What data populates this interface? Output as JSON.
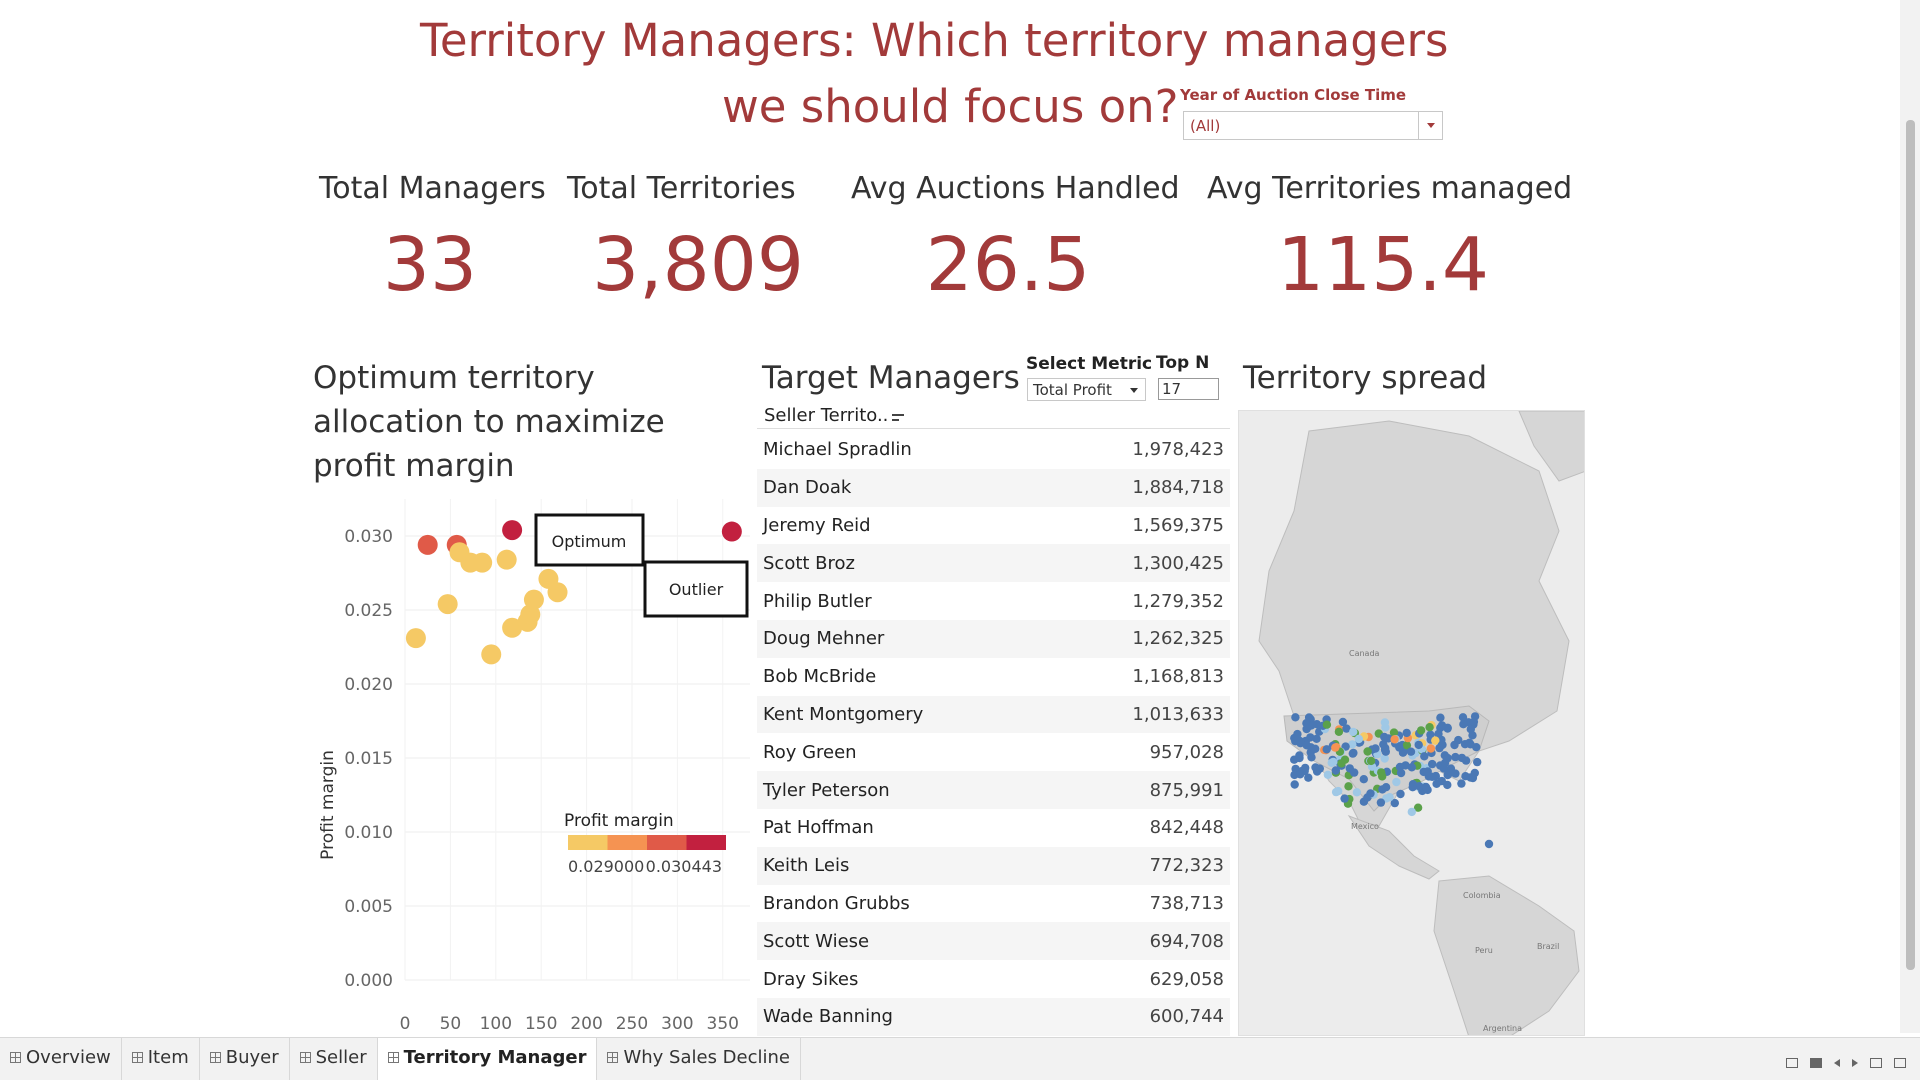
{
  "header": {
    "title_line1": "Territory Managers: Which territory managers",
    "title_line2": "we should focus on?"
  },
  "filter": {
    "label": "Year of Auction Close Time",
    "value": "(All)"
  },
  "kpis": [
    {
      "label": "Total Managers",
      "value": "33"
    },
    {
      "label": "Total Territories",
      "value": "3,809"
    },
    {
      "label": "Avg Auctions Handled",
      "value": "26.5"
    },
    {
      "label": "Avg Territories managed",
      "value": "115.4"
    }
  ],
  "scatter": {
    "title": "Optimum territory allocation to maximize profit margin",
    "annotations": {
      "optimum": "Optimum",
      "outlier": "Outlier"
    },
    "legend_title": "Profit margin",
    "legend_min": "0.029000",
    "legend_max": "0.030443"
  },
  "table": {
    "title": "Target Managers",
    "select_metric_label": "Select Metric",
    "select_metric_value": "Total Profit",
    "topn_label": "Top N",
    "topn_value": "17",
    "column_header": "Seller Territo..",
    "rows": [
      {
        "name": "Michael Spradlin",
        "value": "1,978,423"
      },
      {
        "name": "Dan Doak",
        "value": "1,884,718"
      },
      {
        "name": "Jeremy Reid",
        "value": "1,569,375"
      },
      {
        "name": "Scott Broz",
        "value": "1,300,425"
      },
      {
        "name": "Philip Butler",
        "value": "1,279,352"
      },
      {
        "name": "Doug Mehner",
        "value": "1,262,325"
      },
      {
        "name": "Bob McBride",
        "value": "1,168,813"
      },
      {
        "name": "Kent Montgomery",
        "value": "1,013,633"
      },
      {
        "name": "Roy Green",
        "value": "957,028"
      },
      {
        "name": "Tyler Peterson",
        "value": "875,991"
      },
      {
        "name": "Pat Hoffman",
        "value": "842,448"
      },
      {
        "name": "Keith Leis",
        "value": "772,323"
      },
      {
        "name": "Brandon Grubbs",
        "value": "738,713"
      },
      {
        "name": "Scott Wiese",
        "value": "694,708"
      },
      {
        "name": "Dray Sikes",
        "value": "629,058"
      },
      {
        "name": "Wade Banning",
        "value": "600,744"
      }
    ]
  },
  "map": {
    "title": "Territory spread",
    "labels": {
      "canada": "Canada",
      "mexico": "Mexico",
      "colombia": "Colombia",
      "peru": "Peru",
      "brazil": "Brazil",
      "argentina": "Argentina"
    }
  },
  "tabs": [
    {
      "label": "Overview",
      "active": false
    },
    {
      "label": "Item",
      "active": false
    },
    {
      "label": "Buyer",
      "active": false
    },
    {
      "label": "Seller",
      "active": false
    },
    {
      "label": "Territory Manager",
      "active": true
    },
    {
      "label": "Why Sales Decline",
      "active": false
    }
  ],
  "colors": {
    "accent": "#a23a3a",
    "scale": [
      "#f5c965",
      "#f59352",
      "#e05a48",
      "#c2203f"
    ],
    "map_dots": [
      "#4a78b5",
      "#5ba14a",
      "#f5c965",
      "#f59352",
      "#9fc8e6"
    ]
  },
  "chart_data": {
    "type": "scatter",
    "xlabel": "",
    "ylabel": "Profit margin",
    "xlim": [
      0,
      380
    ],
    "ylim": [
      0,
      0.0325
    ],
    "x_ticks": [
      0,
      50,
      100,
      150,
      200,
      250,
      300,
      350
    ],
    "y_ticks": [
      "0.000",
      "0.005",
      "0.010",
      "0.015",
      "0.020",
      "0.025",
      "0.030"
    ],
    "points": [
      {
        "x": 12,
        "y": 0.0231,
        "v": 0.02905
      },
      {
        "x": 25,
        "y": 0.0294,
        "v": 0.02975
      },
      {
        "x": 47,
        "y": 0.0254,
        "v": 0.02905
      },
      {
        "x": 57,
        "y": 0.0294,
        "v": 0.02975
      },
      {
        "x": 60,
        "y": 0.0289,
        "v": 0.0291
      },
      {
        "x": 72,
        "y": 0.0282,
        "v": 0.02905
      },
      {
        "x": 85,
        "y": 0.0282,
        "v": 0.02905
      },
      {
        "x": 95,
        "y": 0.022,
        "v": 0.02905
      },
      {
        "x": 112,
        "y": 0.0284,
        "v": 0.02905
      },
      {
        "x": 118,
        "y": 0.0238,
        "v": 0.02905
      },
      {
        "x": 118,
        "y": 0.0304,
        "v": 0.03044
      },
      {
        "x": 135,
        "y": 0.0242,
        "v": 0.02905
      },
      {
        "x": 138,
        "y": 0.0247,
        "v": 0.02905
      },
      {
        "x": 142,
        "y": 0.0257,
        "v": 0.02905
      },
      {
        "x": 158,
        "y": 0.0271,
        "v": 0.02905
      },
      {
        "x": 168,
        "y": 0.0262,
        "v": 0.02905
      },
      {
        "x": 360,
        "y": 0.0303,
        "v": 0.03044
      }
    ]
  }
}
